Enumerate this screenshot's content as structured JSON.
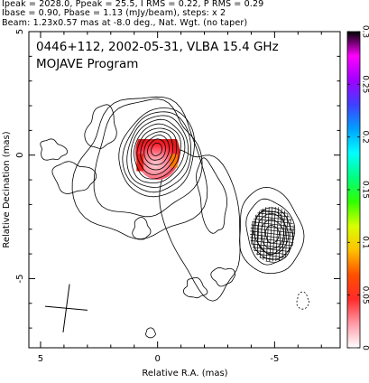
{
  "header": {
    "line1": "Ipeak = 2028.0, Ppeak = 25.5, I RMS = 0.22, P RMS = 0.29",
    "line2": "Ibase = 0.90, Pbase = 1.13 (mJy/beam), steps: x 2",
    "line3": "Beam: 1.23x0.57 mas at -8.0 deg., Nat. Wgt. (no taper)"
  },
  "plot": {
    "source_label": "0446+112, 2002-05-31, VLBA 15.4 GHz",
    "program_label": "MOJAVE Program"
  },
  "chart_data": {
    "type": "contour",
    "xlabel": "Relative R.A. (mas)",
    "ylabel": "Relative Decination (mas)",
    "xlim": [
      5.5,
      -7.8
    ],
    "ylim": [
      -7.8,
      5.0
    ],
    "x_ticks": [
      5,
      0,
      -5
    ],
    "x_tick_labels": [
      "5",
      "0",
      "-5"
    ],
    "y_ticks": [
      5,
      0,
      -5
    ],
    "y_tick_labels": [
      "5",
      "0",
      "-5"
    ],
    "colorbar": {
      "range": [
        0,
        0.3
      ],
      "ticks": [
        0,
        0.05,
        0.1,
        0.15,
        0.2,
        0.25,
        0.3
      ],
      "tick_labels": [
        "0",
        "0.05",
        "0.1",
        "0.15",
        "0.2",
        "0.25",
        "0.3"
      ],
      "colors": [
        "#ffffff",
        "#ff9aa6",
        "#ff2a2a",
        "#ff5000",
        "#ffc000",
        "#d8ff00",
        "#30ff00",
        "#00ff80",
        "#00ffff",
        "#00a0ff",
        "#4040ff",
        "#a000ff",
        "#ff00ff",
        "#000000"
      ]
    },
    "core": {
      "x": 0.0,
      "y": 0.1,
      "peak_mJy_per_beam": 2028.0,
      "contour_levels": 10
    },
    "jet_component": {
      "x": -4.9,
      "y": -3.2,
      "contour_levels": 4
    },
    "beam": {
      "major_mas": 1.23,
      "minor_mas": 0.57,
      "pa_deg": -8.0,
      "x": 3.9,
      "y": -6.2
    },
    "polarization_peak_mJy_per_beam": 25.5,
    "base_contour_mJy_per_beam": 0.9,
    "contour_step": 2
  }
}
